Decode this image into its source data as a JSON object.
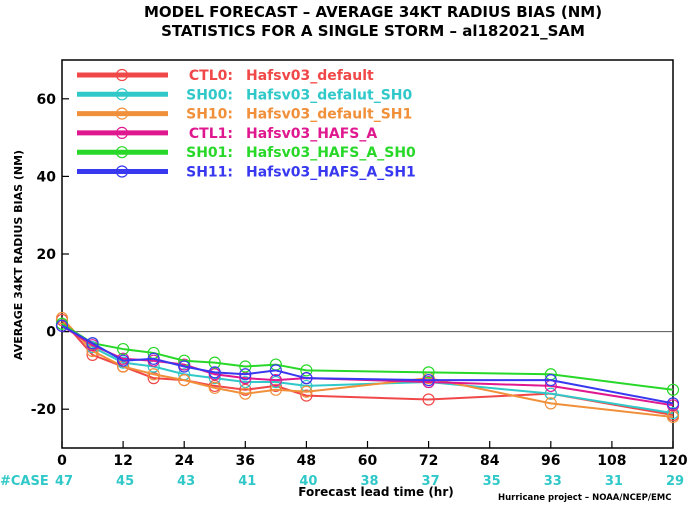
{
  "chart_data": {
    "type": "line",
    "title": "MODEL FORECAST – AVERAGE 34KT RADIUS BIAS (NM)",
    "subtitle": "STATISTICS FOR A SINGLE STORM – al182021_SAM",
    "xlabel": "Forecast lead time (hr)",
    "ylabel": "AVERAGE 34KT RADIUS BIAS (NM)",
    "xlim": [
      0,
      120
    ],
    "ylim": [
      -30,
      70
    ],
    "x_ticks": [
      0,
      12,
      24,
      36,
      48,
      60,
      72,
      84,
      96,
      108,
      120
    ],
    "y_ticks": [
      -20,
      0,
      20,
      40,
      60
    ],
    "zero_line": true,
    "legend_position": "top-left",
    "x": [
      0,
      6,
      12,
      18,
      24,
      30,
      36,
      42,
      48,
      72,
      96,
      120
    ],
    "series": [
      {
        "name": "CTL0:",
        "desc": "Hafsv03_default",
        "color": "#f04848",
        "values": [
          3,
          -6,
          -9,
          -12,
          -12.5,
          -14,
          -15,
          -14,
          -16.5,
          -17.5,
          -16,
          -21.5
        ]
      },
      {
        "name": "SH00:",
        "desc": "Hafsv03_defalut_SH0",
        "color": "#30c8c8",
        "values": [
          2,
          -4,
          -8,
          -9,
          -11,
          -12,
          -13,
          -13,
          -14,
          -13,
          -16,
          -21
        ]
      },
      {
        "name": "SH10:",
        "desc": "Hafsv03_default_SH1",
        "color": "#f0903a",
        "values": [
          3.5,
          -5,
          -9,
          -11,
          -12.5,
          -14.5,
          -16,
          -15,
          -15.5,
          -12,
          -18.5,
          -22
        ]
      },
      {
        "name": "CTL1:",
        "desc": "Hafsv03_HAFS_A",
        "color": "#e01890",
        "values": [
          1.5,
          -3.5,
          -7,
          -7.5,
          -8.5,
          -11,
          -12,
          -12.5,
          -12,
          -13,
          -14,
          -19
        ]
      },
      {
        "name": "SH01:",
        "desc": "Hafsv03_HAFS_A_SH0",
        "color": "#28d828",
        "values": [
          2,
          -3,
          -4.5,
          -5.5,
          -7.5,
          -8,
          -9,
          -8.5,
          -10,
          -10.5,
          -11,
          -15
        ]
      },
      {
        "name": "SH11:",
        "desc": "Hafsv03_HAFS_A_SH1",
        "color": "#3838f0",
        "values": [
          1.5,
          -3,
          -7.5,
          -7,
          -9,
          -10.5,
          -11,
          -10,
          -12,
          -12.5,
          -12.5,
          -18.5
        ]
      }
    ],
    "cases": {
      "label": "#CASE",
      "x": [
        0,
        12,
        24,
        36,
        48,
        60,
        72,
        84,
        96,
        108,
        120
      ],
      "values": [
        "47",
        "45",
        "43",
        "41",
        "40",
        "38",
        "37",
        "35",
        "33",
        "31",
        "29"
      ],
      "color": "#30c8c8"
    },
    "credit": "Hurricane project – NOAA/NCEP/EMC"
  }
}
